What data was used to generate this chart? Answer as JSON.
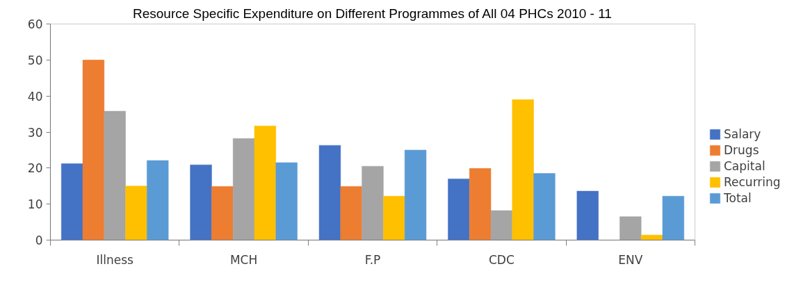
{
  "chart_data": {
    "type": "bar",
    "title": "Resource Specific Expenditure on Different Programmes of All 04 PHCs 2010 - 11",
    "categories": [
      "Illness",
      "MCH",
      "F.P",
      "CDC",
      "ENV"
    ],
    "series": [
      {
        "name": "Salary",
        "color": "#4472c4",
        "values": [
          21.2,
          20.9,
          26.3,
          17.0,
          13.6
        ]
      },
      {
        "name": "Drugs",
        "color": "#ed7d31",
        "values": [
          50,
          14.9,
          14.9,
          19.9,
          0
        ]
      },
      {
        "name": "Capital",
        "color": "#a5a5a5",
        "values": [
          35.8,
          28.2,
          20.5,
          8.2,
          6.5
        ]
      },
      {
        "name": "Recurring",
        "color": "#ffc000",
        "values": [
          15.0,
          31.7,
          12.2,
          39.0,
          1.4
        ]
      },
      {
        "name": "Total",
        "color": "#5b9bd5",
        "values": [
          22.1,
          21.5,
          25.0,
          18.5,
          12.2
        ]
      }
    ],
    "ylim": [
      0,
      60
    ],
    "yticks": [
      0,
      10,
      20,
      30,
      40,
      50,
      60
    ],
    "grid": false,
    "legend": "right"
  }
}
